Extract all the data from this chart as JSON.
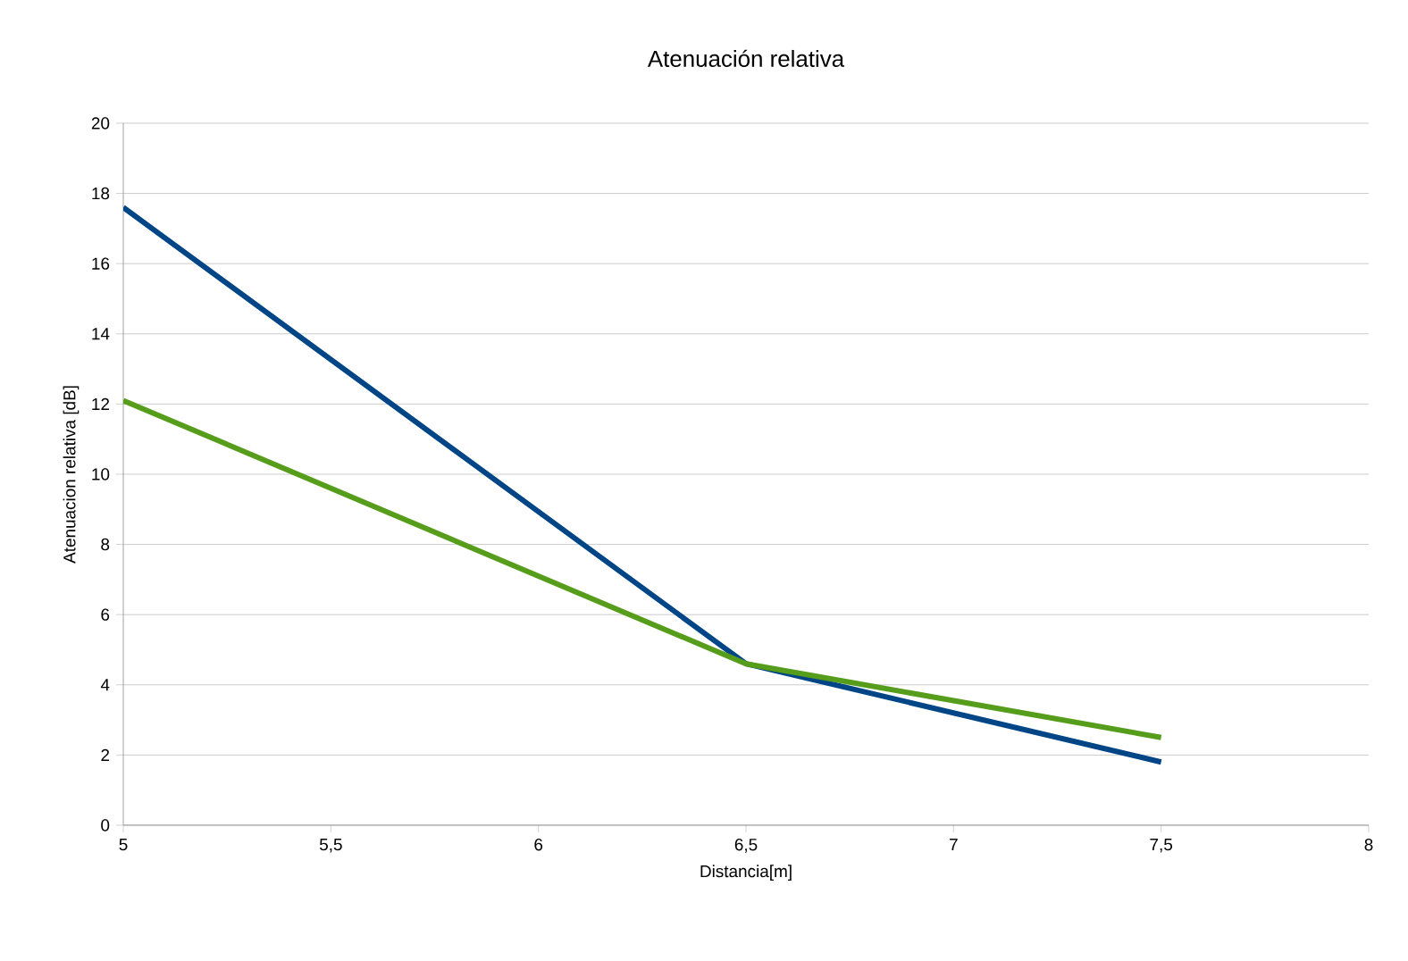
{
  "chart_data": {
    "type": "line",
    "title": "Atenuación relativa",
    "xlabel": "Distancia[m]",
    "ylabel": "Atenuacion relativa [dB]",
    "series": [
      {
        "color": "#004586",
        "x": [
          5,
          6.5,
          7.5
        ],
        "values": [
          17.6,
          4.6,
          1.8
        ]
      },
      {
        "color": "#579d1c",
        "x": [
          5,
          6.5,
          7.5
        ],
        "values": [
          12.1,
          4.6,
          2.5
        ]
      }
    ],
    "xlim": [
      5,
      8
    ],
    "xticks": [
      5,
      {
        "value": 5.5,
        "label": "5,5"
      },
      6,
      {
        "value": 6.5,
        "label": "6,5"
      },
      7,
      {
        "value": 7.5,
        "label": "7,5"
      },
      8
    ],
    "ylim": [
      0,
      20
    ],
    "yticks": [
      0,
      2,
      4,
      6,
      8,
      10,
      12,
      14,
      16,
      18,
      20
    ],
    "grid": "y",
    "marker": "none",
    "line_style": "solid"
  }
}
